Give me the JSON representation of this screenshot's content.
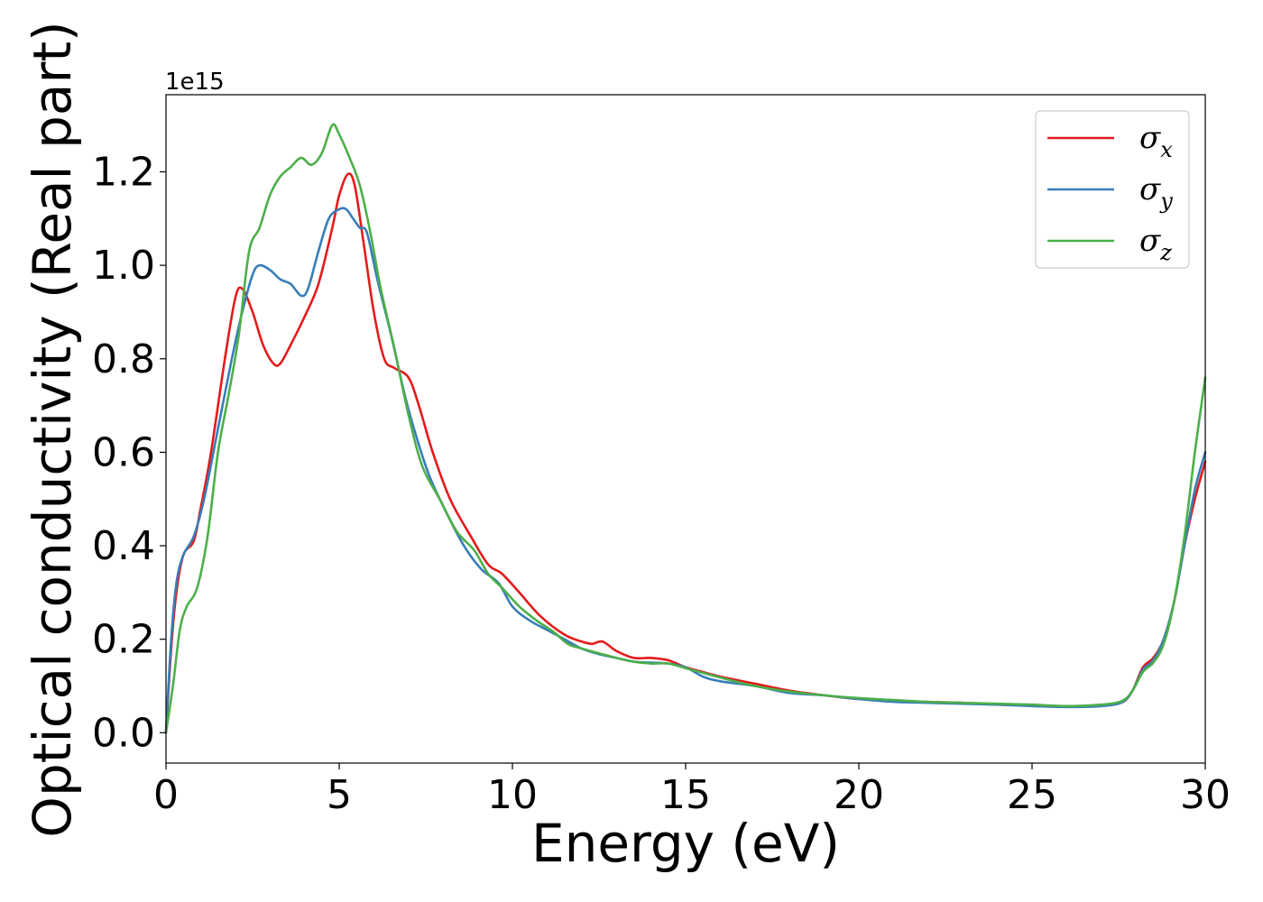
{
  "chart_data": {
    "type": "line",
    "xlabel": "Energy (eV)",
    "ylabel": "Optical conductivity (Real part)",
    "y_offset_label": "1e15",
    "xlim": [
      0,
      30
    ],
    "ylim": [
      -0.065,
      1.365
    ],
    "x_ticks": [
      0,
      5,
      10,
      15,
      20,
      25,
      30
    ],
    "x_tick_labels": [
      "0",
      "5",
      "10",
      "15",
      "20",
      "25",
      "30"
    ],
    "y_ticks": [
      0.0,
      0.2,
      0.4,
      0.6,
      0.8,
      1.0,
      1.2
    ],
    "y_tick_labels": [
      "0.0",
      "0.2",
      "0.4",
      "0.6",
      "0.8",
      "1.0",
      "1.2"
    ],
    "grid": false,
    "legend_position": "top-right",
    "series": [
      {
        "name": "σx",
        "symbol": "σ",
        "subscript": "x",
        "color": "#e41a1c",
        "points": [
          [
            0,
            0.0
          ],
          [
            0.15,
            0.18
          ],
          [
            0.3,
            0.3
          ],
          [
            0.5,
            0.38
          ],
          [
            0.8,
            0.41
          ],
          [
            1.0,
            0.48
          ],
          [
            1.3,
            0.6
          ],
          [
            1.7,
            0.8
          ],
          [
            2.0,
            0.93
          ],
          [
            2.2,
            0.95
          ],
          [
            2.5,
            0.9
          ],
          [
            2.8,
            0.83
          ],
          [
            3.1,
            0.79
          ],
          [
            3.3,
            0.79
          ],
          [
            3.6,
            0.83
          ],
          [
            4.0,
            0.89
          ],
          [
            4.4,
            0.96
          ],
          [
            4.8,
            1.08
          ],
          [
            5.0,
            1.15
          ],
          [
            5.25,
            1.195
          ],
          [
            5.45,
            1.17
          ],
          [
            5.7,
            1.05
          ],
          [
            6.0,
            0.9
          ],
          [
            6.3,
            0.8
          ],
          [
            6.6,
            0.78
          ],
          [
            7.0,
            0.76
          ],
          [
            7.3,
            0.7
          ],
          [
            7.7,
            0.6
          ],
          [
            8.2,
            0.5
          ],
          [
            8.8,
            0.42
          ],
          [
            9.3,
            0.36
          ],
          [
            9.7,
            0.34
          ],
          [
            10.2,
            0.3
          ],
          [
            10.8,
            0.25
          ],
          [
            11.5,
            0.21
          ],
          [
            12.0,
            0.195
          ],
          [
            12.3,
            0.19
          ],
          [
            12.6,
            0.195
          ],
          [
            13.0,
            0.175
          ],
          [
            13.5,
            0.16
          ],
          [
            14.0,
            0.16
          ],
          [
            14.5,
            0.155
          ],
          [
            15.0,
            0.14
          ],
          [
            15.5,
            0.13
          ],
          [
            16.0,
            0.12
          ],
          [
            17.0,
            0.105
          ],
          [
            18.0,
            0.09
          ],
          [
            19.0,
            0.08
          ],
          [
            20.0,
            0.072
          ],
          [
            21.0,
            0.068
          ],
          [
            22.0,
            0.066
          ],
          [
            23.0,
            0.064
          ],
          [
            24.0,
            0.06
          ],
          [
            25.0,
            0.058
          ],
          [
            26.0,
            0.056
          ],
          [
            27.0,
            0.058
          ],
          [
            27.6,
            0.065
          ],
          [
            27.9,
            0.09
          ],
          [
            28.2,
            0.14
          ],
          [
            28.5,
            0.16
          ],
          [
            28.8,
            0.2
          ],
          [
            29.1,
            0.28
          ],
          [
            29.4,
            0.4
          ],
          [
            29.7,
            0.5
          ],
          [
            30.0,
            0.58
          ]
        ]
      },
      {
        "name": "σy",
        "symbol": "σ",
        "subscript": "y",
        "color": "#377eb8",
        "points": [
          [
            0,
            0.0
          ],
          [
            0.15,
            0.2
          ],
          [
            0.3,
            0.32
          ],
          [
            0.5,
            0.38
          ],
          [
            0.8,
            0.42
          ],
          [
            1.1,
            0.5
          ],
          [
            1.5,
            0.65
          ],
          [
            1.9,
            0.8
          ],
          [
            2.2,
            0.9
          ],
          [
            2.5,
            0.98
          ],
          [
            2.7,
            1.0
          ],
          [
            3.0,
            0.99
          ],
          [
            3.3,
            0.97
          ],
          [
            3.6,
            0.96
          ],
          [
            3.9,
            0.935
          ],
          [
            4.1,
            0.95
          ],
          [
            4.4,
            1.03
          ],
          [
            4.7,
            1.1
          ],
          [
            5.0,
            1.12
          ],
          [
            5.2,
            1.12
          ],
          [
            5.4,
            1.1
          ],
          [
            5.6,
            1.08
          ],
          [
            5.8,
            1.07
          ],
          [
            6.1,
            0.97
          ],
          [
            6.5,
            0.85
          ],
          [
            6.9,
            0.72
          ],
          [
            7.2,
            0.64
          ],
          [
            7.6,
            0.55
          ],
          [
            8.1,
            0.47
          ],
          [
            8.6,
            0.4
          ],
          [
            9.1,
            0.35
          ],
          [
            9.6,
            0.32
          ],
          [
            10.0,
            0.27
          ],
          [
            10.5,
            0.24
          ],
          [
            11.0,
            0.22
          ],
          [
            11.5,
            0.2
          ],
          [
            12.0,
            0.18
          ],
          [
            12.5,
            0.168
          ],
          [
            13.0,
            0.16
          ],
          [
            13.5,
            0.152
          ],
          [
            14.0,
            0.15
          ],
          [
            14.5,
            0.148
          ],
          [
            15.0,
            0.14
          ],
          [
            15.5,
            0.12
          ],
          [
            16.0,
            0.11
          ],
          [
            17.0,
            0.1
          ],
          [
            18.0,
            0.085
          ],
          [
            19.0,
            0.08
          ],
          [
            20.0,
            0.072
          ],
          [
            21.0,
            0.066
          ],
          [
            22.0,
            0.064
          ],
          [
            23.0,
            0.062
          ],
          [
            24.0,
            0.06
          ],
          [
            25.0,
            0.057
          ],
          [
            26.0,
            0.055
          ],
          [
            27.0,
            0.057
          ],
          [
            27.6,
            0.065
          ],
          [
            27.9,
            0.09
          ],
          [
            28.2,
            0.135
          ],
          [
            28.5,
            0.155
          ],
          [
            28.8,
            0.2
          ],
          [
            29.1,
            0.28
          ],
          [
            29.4,
            0.4
          ],
          [
            29.7,
            0.52
          ],
          [
            30.0,
            0.6
          ]
        ]
      },
      {
        "name": "σz",
        "symbol": "σ",
        "subscript": "z",
        "color": "#4daf4a",
        "points": [
          [
            0,
            0.0
          ],
          [
            0.2,
            0.1
          ],
          [
            0.4,
            0.22
          ],
          [
            0.6,
            0.27
          ],
          [
            0.9,
            0.31
          ],
          [
            1.2,
            0.42
          ],
          [
            1.5,
            0.6
          ],
          [
            1.8,
            0.72
          ],
          [
            2.1,
            0.85
          ],
          [
            2.4,
            1.03
          ],
          [
            2.7,
            1.08
          ],
          [
            3.0,
            1.15
          ],
          [
            3.3,
            1.19
          ],
          [
            3.6,
            1.21
          ],
          [
            3.9,
            1.23
          ],
          [
            4.2,
            1.215
          ],
          [
            4.5,
            1.24
          ],
          [
            4.8,
            1.3
          ],
          [
            5.0,
            1.28
          ],
          [
            5.3,
            1.23
          ],
          [
            5.6,
            1.17
          ],
          [
            5.9,
            1.07
          ],
          [
            6.2,
            0.95
          ],
          [
            6.6,
            0.82
          ],
          [
            7.0,
            0.68
          ],
          [
            7.4,
            0.57
          ],
          [
            7.9,
            0.5
          ],
          [
            8.4,
            0.43
          ],
          [
            8.9,
            0.39
          ],
          [
            9.3,
            0.34
          ],
          [
            9.7,
            0.31
          ],
          [
            10.2,
            0.27
          ],
          [
            10.7,
            0.24
          ],
          [
            11.2,
            0.215
          ],
          [
            11.6,
            0.19
          ],
          [
            12.0,
            0.18
          ],
          [
            12.5,
            0.17
          ],
          [
            13.0,
            0.16
          ],
          [
            13.5,
            0.152
          ],
          [
            14.0,
            0.148
          ],
          [
            14.5,
            0.148
          ],
          [
            15.0,
            0.138
          ],
          [
            15.5,
            0.128
          ],
          [
            16.0,
            0.118
          ],
          [
            17.0,
            0.1
          ],
          [
            18.0,
            0.088
          ],
          [
            19.0,
            0.08
          ],
          [
            20.0,
            0.074
          ],
          [
            21.0,
            0.07
          ],
          [
            22.0,
            0.066
          ],
          [
            23.0,
            0.064
          ],
          [
            24.0,
            0.062
          ],
          [
            25.0,
            0.06
          ],
          [
            26.0,
            0.057
          ],
          [
            27.0,
            0.06
          ],
          [
            27.6,
            0.068
          ],
          [
            27.9,
            0.09
          ],
          [
            28.2,
            0.13
          ],
          [
            28.5,
            0.15
          ],
          [
            28.8,
            0.19
          ],
          [
            29.1,
            0.28
          ],
          [
            29.4,
            0.42
          ],
          [
            29.7,
            0.6
          ],
          [
            30.0,
            0.76
          ]
        ]
      }
    ]
  }
}
